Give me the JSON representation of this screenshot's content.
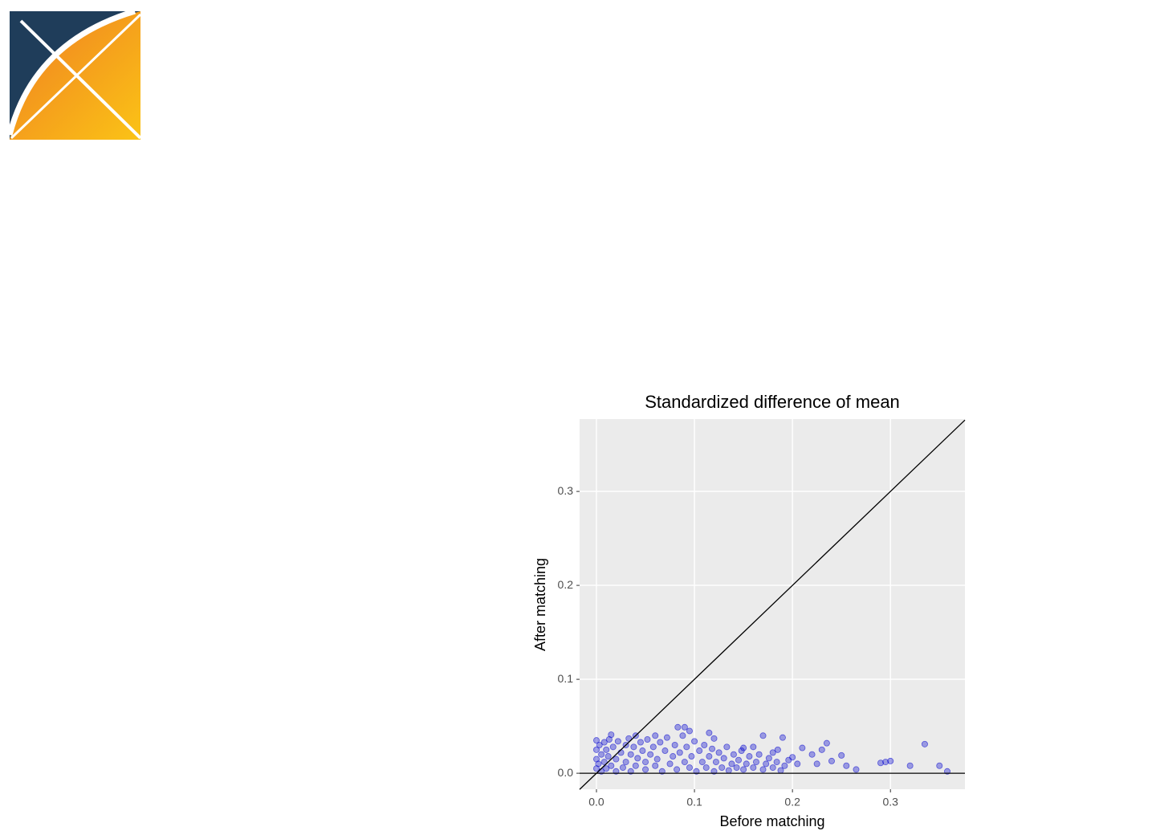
{
  "chart_data": {
    "type": "scatter",
    "title": "Standardized difference of mean",
    "x_label": "Before matching",
    "y_label": "After matching",
    "series": [
      {
        "color": "#0000cd",
        "x": [
          0,
          0,
          0,
          0,
          0.002,
          0.003,
          0.005,
          0.005,
          0.008,
          0.008,
          0.01,
          0.01,
          0.012,
          0.013,
          0.015,
          0.017,
          0.02,
          0.02,
          0.022,
          0.025,
          0.027,
          0.03,
          0.03,
          0.033,
          0.035,
          0.035,
          0.038,
          0.04,
          0.042,
          0.045,
          0.047,
          0.05,
          0.05,
          0.052,
          0.055,
          0.058,
          0.06,
          0.062,
          0.065,
          0.067,
          0.07,
          0.072,
          0.075,
          0.078,
          0.08,
          0.082,
          0.085,
          0.088,
          0.09,
          0.092,
          0.095,
          0.097,
          0.1,
          0.102,
          0.105,
          0.108,
          0.11,
          0.112,
          0.115,
          0.118,
          0.12,
          0.122,
          0.125,
          0.128,
          0.13,
          0.133,
          0.135,
          0.138,
          0.14,
          0.143,
          0.145,
          0.148,
          0.15,
          0.153,
          0.156,
          0.16,
          0.163,
          0.166,
          0.17,
          0.173,
          0.176,
          0.18,
          0.184,
          0.188,
          0.192,
          0.196,
          0.015,
          0.04,
          0.06,
          0.083,
          0.09,
          0.095,
          0.115,
          0.12,
          0.15,
          0.16,
          0.17,
          0.18,
          0.185,
          0.19,
          0.2,
          0.205,
          0.21,
          0.22,
          0.225,
          0.23,
          0.235,
          0.24,
          0.25,
          0.255,
          0.265,
          0.29,
          0.295,
          0.3,
          0.32,
          0.335,
          0.35,
          0.358
        ],
        "values": [
          0.005,
          0.015,
          0.025,
          0.035,
          0.01,
          0.03,
          0.002,
          0.02,
          0.012,
          0.033,
          0.005,
          0.025,
          0.018,
          0.036,
          0.008,
          0.028,
          0.002,
          0.015,
          0.034,
          0.022,
          0.006,
          0.03,
          0.012,
          0.037,
          0.002,
          0.02,
          0.028,
          0.008,
          0.016,
          0.033,
          0.024,
          0.004,
          0.012,
          0.036,
          0.02,
          0.028,
          0.008,
          0.015,
          0.033,
          0.002,
          0.024,
          0.038,
          0.01,
          0.018,
          0.03,
          0.004,
          0.022,
          0.04,
          0.012,
          0.028,
          0.006,
          0.018,
          0.034,
          0.002,
          0.024,
          0.012,
          0.03,
          0.006,
          0.018,
          0.026,
          0.002,
          0.012,
          0.022,
          0.006,
          0.016,
          0.028,
          0.003,
          0.01,
          0.02,
          0.006,
          0.014,
          0.024,
          0.004,
          0.01,
          0.018,
          0.006,
          0.012,
          0.02,
          0.004,
          0.01,
          0.016,
          0.006,
          0.012,
          0.003,
          0.008,
          0.014,
          0.041,
          0.04,
          0.04,
          0.049,
          0.049,
          0.045,
          0.043,
          0.037,
          0.027,
          0.028,
          0.04,
          0.022,
          0.025,
          0.038,
          0.017,
          0.01,
          0.027,
          0.02,
          0.01,
          0.025,
          0.032,
          0.013,
          0.019,
          0.008,
          0.004,
          0.011,
          0.012,
          0.013,
          0.008,
          0.031,
          0.008,
          0.002
        ]
      }
    ],
    "reference_lines": [
      {
        "slope": 1,
        "intercept": 0
      },
      {
        "slope": 0,
        "intercept": 0
      }
    ],
    "xlim": [
      -0.0172,
      0.376
    ],
    "ylim": [
      -0.017,
      0.377
    ],
    "xticks": [
      {
        "value": 0,
        "label": "0.0"
      },
      0.1,
      0.2,
      0.3
    ],
    "yticks": [
      {
        "value": 0,
        "label": "0.0"
      },
      0.1,
      0.2,
      0.3
    ],
    "grid": true
  }
}
